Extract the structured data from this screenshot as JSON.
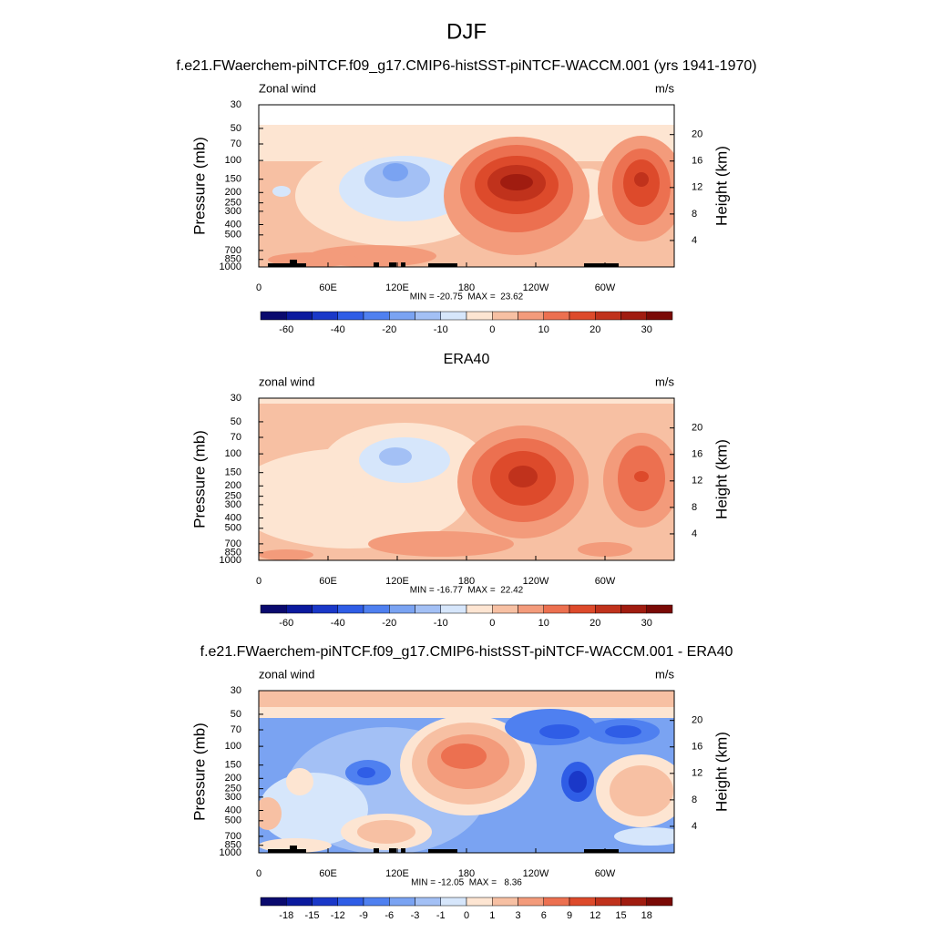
{
  "title": "DJF",
  "chart_data": [
    {
      "type": "contour",
      "title": "f.e21.FWaerchem-piNTCF.f09_g17.CMIP6-histSST-piNTCF-WACCM.001 (yrs 1941-1970)",
      "left_label": "Zonal wind",
      "right_label": "m/s",
      "ylabel": "Pressure (mb)",
      "y2label": "Height (km)",
      "stats": "MIN = -20.75  MAX =  23.62",
      "xlim": [
        0,
        360
      ],
      "xticks": [
        0,
        {
          "value": 60,
          "label": "60E"
        },
        {
          "value": 120,
          "label": "120E"
        },
        180,
        {
          "value": 240,
          "label": "120W"
        },
        {
          "value": 300,
          "label": "60W"
        }
      ],
      "ylim": [
        1000,
        30
      ],
      "ylog": true,
      "yticks": [
        30,
        50,
        70,
        100,
        150,
        200,
        250,
        300,
        400,
        500,
        700,
        850,
        1000
      ],
      "y2lim": [
        0,
        24.5
      ],
      "y2ticks": [
        4,
        8,
        12,
        16,
        20
      ],
      "colorbar": {
        "colors": [
          "#0a0a6e",
          "#0b1a9e",
          "#1a38c8",
          "#2f5de6",
          "#4f80f0",
          "#7aa3f2",
          "#a3c0f5",
          "#d6e6fb",
          "#fde5d2",
          "#f7c0a3",
          "#f39b7b",
          "#ec7050",
          "#dd4a2b",
          "#c0321c",
          "#a01c10",
          "#7a0a06"
        ],
        "ticks": [
          -60,
          -40,
          -20,
          -10,
          0,
          10,
          20,
          30
        ]
      }
    },
    {
      "type": "contour",
      "title": "ERA40",
      "left_label": "zonal wind",
      "right_label": "m/s",
      "ylabel": "Pressure (mb)",
      "y2label": "Height (km)",
      "stats": "MIN = -16.77  MAX =  22.42",
      "xlim": [
        0,
        360
      ],
      "xticks": [
        0,
        {
          "value": 60,
          "label": "60E"
        },
        {
          "value": 120,
          "label": "120E"
        },
        180,
        {
          "value": 240,
          "label": "120W"
        },
        {
          "value": 300,
          "label": "60W"
        }
      ],
      "ylim": [
        1000,
        30
      ],
      "ylog": true,
      "yticks": [
        30,
        50,
        70,
        100,
        150,
        200,
        250,
        300,
        400,
        500,
        700,
        850,
        1000
      ],
      "y2lim": [
        0,
        24.5
      ],
      "y2ticks": [
        4,
        8,
        12,
        16,
        20
      ],
      "colorbar": {
        "colors": [
          "#0a0a6e",
          "#0b1a9e",
          "#1a38c8",
          "#2f5de6",
          "#4f80f0",
          "#7aa3f2",
          "#a3c0f5",
          "#d6e6fb",
          "#fde5d2",
          "#f7c0a3",
          "#f39b7b",
          "#ec7050",
          "#dd4a2b",
          "#c0321c",
          "#a01c10",
          "#7a0a06"
        ],
        "ticks": [
          -60,
          -40,
          -20,
          -10,
          0,
          10,
          20,
          30
        ]
      }
    },
    {
      "type": "contour",
      "title": "f.e21.FWaerchem-piNTCF.f09_g17.CMIP6-histSST-piNTCF-WACCM.001 - ERA40",
      "left_label": "zonal wind",
      "right_label": "m/s",
      "ylabel": "Pressure (mb)",
      "y2label": "Height (km)",
      "stats": "MIN = -12.05  MAX =   8.36",
      "xlim": [
        0,
        360
      ],
      "xticks": [
        0,
        {
          "value": 60,
          "label": "60E"
        },
        {
          "value": 120,
          "label": "120E"
        },
        180,
        {
          "value": 240,
          "label": "120W"
        },
        {
          "value": 300,
          "label": "60W"
        }
      ],
      "ylim": [
        1000,
        30
      ],
      "ylog": true,
      "yticks": [
        30,
        50,
        70,
        100,
        150,
        200,
        250,
        300,
        400,
        500,
        700,
        850,
        1000
      ],
      "y2lim": [
        0,
        24.5
      ],
      "y2ticks": [
        4,
        8,
        12,
        16,
        20
      ],
      "colorbar": {
        "colors": [
          "#0a0a6e",
          "#0b1a9e",
          "#1a38c8",
          "#2f5de6",
          "#4f80f0",
          "#7aa3f2",
          "#a3c0f5",
          "#d6e6fb",
          "#fde5d2",
          "#f7c0a3",
          "#f39b7b",
          "#ec7050",
          "#dd4a2b",
          "#c0321c",
          "#a01c10",
          "#7a0a06"
        ],
        "ticks": [
          -18,
          -15,
          -12,
          -9,
          -6,
          -3,
          -1,
          0,
          1,
          3,
          6,
          9,
          12,
          15,
          18
        ]
      }
    }
  ]
}
